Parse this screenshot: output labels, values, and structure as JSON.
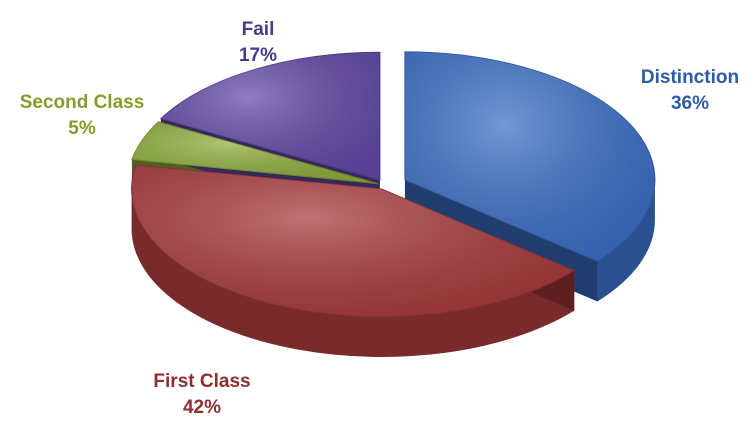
{
  "chart_data": {
    "type": "pie",
    "categories": [
      "Distinction",
      "First Class",
      "Second Class",
      "Fail"
    ],
    "values": [
      36,
      42,
      5,
      17
    ],
    "value_labels": [
      "36%",
      "42%",
      "5%",
      "17%"
    ],
    "colors": [
      "#3b6fc6",
      "#a83a3c",
      "#8fae3c",
      "#6449a8"
    ],
    "label_colors": [
      "#2c5ca8",
      "#8c2f30",
      "#8a9a2a",
      "#4a3a8a"
    ]
  }
}
